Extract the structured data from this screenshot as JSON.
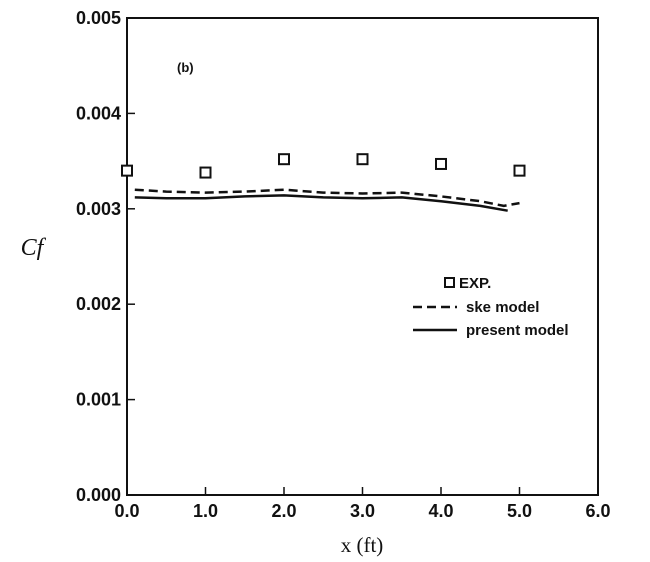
{
  "chart_data": {
    "type": "line",
    "annotation": "(b)",
    "xlabel": "x (ft)",
    "ylabel": "Cf",
    "xlim": [
      0.0,
      6.0
    ],
    "ylim": [
      0.0,
      0.005
    ],
    "xticks": [
      "0.0",
      "1.0",
      "2.0",
      "3.0",
      "4.0",
      "5.0",
      "6.0"
    ],
    "yticks": [
      "0.000",
      "0.001",
      "0.002",
      "0.003",
      "0.004",
      "0.005"
    ],
    "grid": false,
    "legend_position": "right-middle",
    "series": [
      {
        "name": "EXP.",
        "style": "markers",
        "marker": "open-square",
        "x": [
          0.0,
          1.0,
          2.0,
          3.0,
          4.0,
          5.0
        ],
        "y": [
          0.0034,
          0.00338,
          0.00352,
          0.00352,
          0.00347,
          0.0034
        ]
      },
      {
        "name": "ske model",
        "style": "dashed",
        "x": [
          0.1,
          0.5,
          1.0,
          1.5,
          2.0,
          2.5,
          3.0,
          3.5,
          4.0,
          4.5,
          4.8,
          5.0
        ],
        "y": [
          0.0032,
          0.00318,
          0.00317,
          0.00318,
          0.0032,
          0.00317,
          0.00316,
          0.00317,
          0.00313,
          0.00308,
          0.00303,
          0.00306
        ]
      },
      {
        "name": "present model",
        "style": "solid",
        "x": [
          0.1,
          0.5,
          1.0,
          1.5,
          2.0,
          2.5,
          3.0,
          3.5,
          4.0,
          4.5,
          4.85
        ],
        "y": [
          0.00312,
          0.00311,
          0.00311,
          0.00313,
          0.00314,
          0.00312,
          0.00311,
          0.00312,
          0.00308,
          0.00303,
          0.00298
        ]
      }
    ]
  }
}
